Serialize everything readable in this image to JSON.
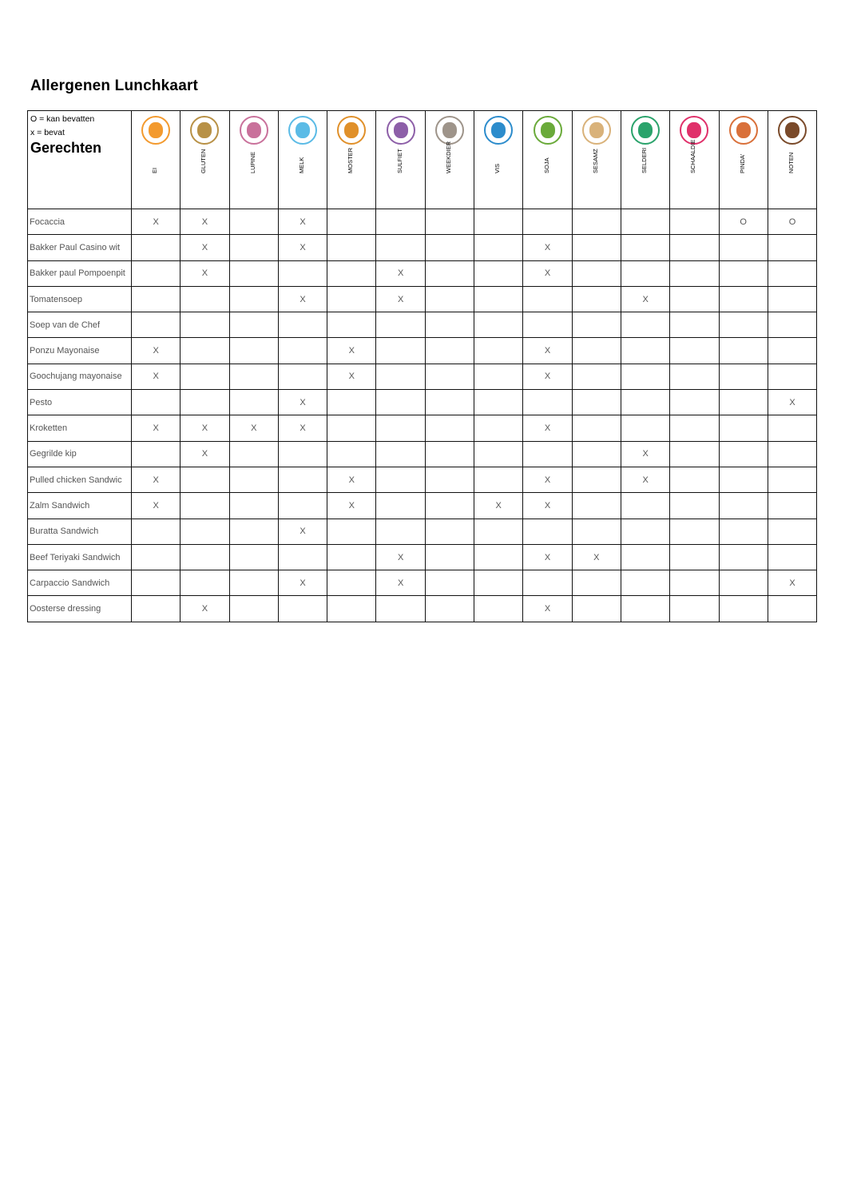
{
  "title": "Allergenen Lunchkaart",
  "legend": {
    "maybe": "O = kan bevatten",
    "contains": "x = bevat",
    "heading": "Gerechten"
  },
  "allergens": [
    {
      "label": "EI",
      "icon": "egg-icon",
      "color": "#f39a2e"
    },
    {
      "label": "GLUTEN",
      "icon": "wheat-icon",
      "color": "#b89146"
    },
    {
      "label": "LUPINE",
      "icon": "lupine-icon",
      "color": "#c9719b"
    },
    {
      "label": "MELK",
      "icon": "milk-icon",
      "color": "#5bbbe6"
    },
    {
      "label": "MOSTER",
      "icon": "mustard-icon",
      "color": "#e0902a"
    },
    {
      "label": "SULFIET",
      "icon": "sulphite-icon",
      "color": "#8d5fa8"
    },
    {
      "label": "WEEKDIER",
      "icon": "snail-icon",
      "color": "#9e948a"
    },
    {
      "label": "VIS",
      "icon": "fish-icon",
      "color": "#2c8ccc"
    },
    {
      "label": "SOJA",
      "icon": "soy-icon",
      "color": "#6aaa3a"
    },
    {
      "label": "SESAMZ",
      "icon": "sesame-icon",
      "color": "#d9b27a"
    },
    {
      "label": "SELDERI",
      "icon": "celery-icon",
      "color": "#2aa36b"
    },
    {
      "label": "SCHAALDIE",
      "icon": "lobster-icon",
      "color": "#e0306a"
    },
    {
      "label": "PINDA'",
      "icon": "peanut-icon",
      "color": "#d9703a"
    },
    {
      "label": "NOTEN",
      "icon": "acorn-icon",
      "color": "#7a4a2a"
    }
  ],
  "dishes": [
    {
      "name": "Focaccia",
      "marks": [
        "X",
        "X",
        "",
        "X",
        "",
        "",
        "",
        "",
        "",
        "",
        "",
        "",
        "O",
        "O"
      ]
    },
    {
      "name": "Bakker Paul Casino wit",
      "marks": [
        "",
        "X",
        "",
        "X",
        "",
        "",
        "",
        "",
        "X",
        "",
        "",
        "",
        "",
        ""
      ]
    },
    {
      "name": "Bakker paul Pompoenpit",
      "marks": [
        "",
        "X",
        "",
        "",
        "",
        "X",
        "",
        "",
        "X",
        "",
        "",
        "",
        "",
        ""
      ]
    },
    {
      "name": "Tomatensoep",
      "marks": [
        "",
        "",
        "",
        "X",
        "",
        "X",
        "",
        "",
        "",
        "",
        "X",
        "",
        "",
        ""
      ]
    },
    {
      "name": "Soep van de Chef",
      "marks": [
        "",
        "",
        "",
        "",
        "",
        "",
        "",
        "",
        "",
        "",
        "",
        "",
        "",
        ""
      ]
    },
    {
      "name": "Ponzu Mayonaise",
      "marks": [
        "X",
        "",
        "",
        "",
        "X",
        "",
        "",
        "",
        "X",
        "",
        "",
        "",
        "",
        ""
      ]
    },
    {
      "name": "Goochujang mayonaise",
      "marks": [
        "X",
        "",
        "",
        "",
        "X",
        "",
        "",
        "",
        "X",
        "",
        "",
        "",
        "",
        ""
      ]
    },
    {
      "name": "Pesto",
      "marks": [
        "",
        "",
        "",
        "X",
        "",
        "",
        "",
        "",
        "",
        "",
        "",
        "",
        "",
        "X"
      ]
    },
    {
      "name": "Kroketten",
      "marks": [
        "X",
        "X",
        "X",
        "X",
        "",
        "",
        "",
        "",
        "X",
        "",
        "",
        "",
        "",
        ""
      ]
    },
    {
      "name": "Gegrilde kip",
      "marks": [
        "",
        "X",
        "",
        "",
        "",
        "",
        "",
        "",
        "",
        "",
        "X",
        "",
        "",
        ""
      ]
    },
    {
      "name": "Pulled chicken Sandwic",
      "marks": [
        "X",
        "",
        "",
        "",
        "X",
        "",
        "",
        "",
        "X",
        "",
        "X",
        "",
        "",
        ""
      ]
    },
    {
      "name": "Zalm Sandwich",
      "marks": [
        "X",
        "",
        "",
        "",
        "X",
        "",
        "",
        "X",
        "X",
        "",
        "",
        "",
        "",
        ""
      ]
    },
    {
      "name": "Buratta Sandwich",
      "marks": [
        "",
        "",
        "",
        "X",
        "",
        "",
        "",
        "",
        "",
        "",
        "",
        "",
        "",
        ""
      ]
    },
    {
      "name": "Beef Teriyaki Sandwich",
      "marks": [
        "",
        "",
        "",
        "",
        "",
        "X",
        "",
        "",
        "X",
        "X",
        "",
        "",
        "",
        ""
      ]
    },
    {
      "name": "Carpaccio Sandwich",
      "marks": [
        "",
        "",
        "",
        "X",
        "",
        "X",
        "",
        "",
        "",
        "",
        "",
        "",
        "",
        "X"
      ]
    },
    {
      "name": "Oosterse dressing",
      "marks": [
        "",
        "X",
        "",
        "",
        "",
        "",
        "",
        "",
        "X",
        "",
        "",
        "",
        "",
        ""
      ]
    }
  ]
}
